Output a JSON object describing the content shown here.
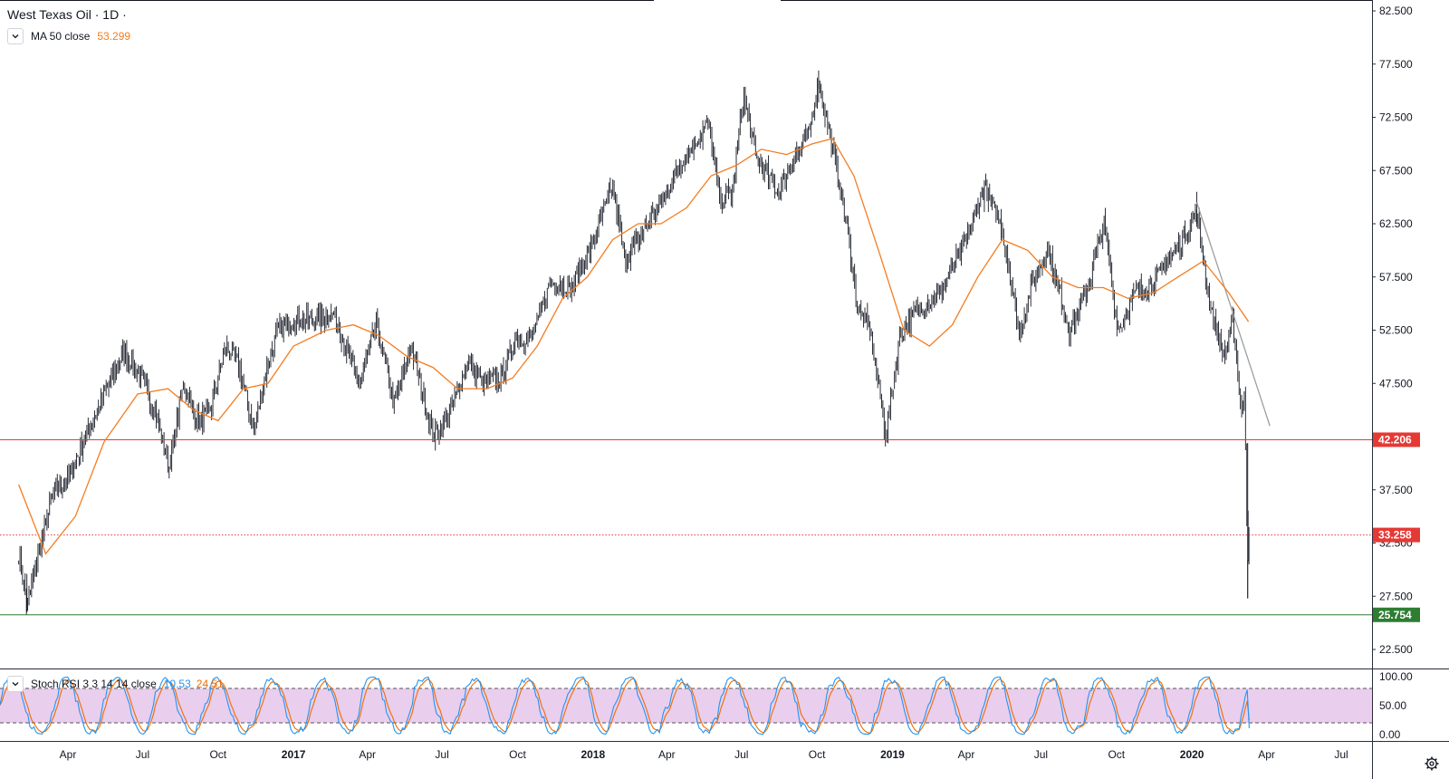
{
  "header": {
    "symbol_title": "West Texas Oil · 1D ·",
    "ma_label": "MA 50 close",
    "ma_value": "53.299",
    "stoch_label": "Stoch RSI 3 3 14 14 close",
    "stoch_k_value": "10.53",
    "stoch_d_value": "24.51"
  },
  "colors": {
    "candle": "#131722",
    "ma": "#f57c1f",
    "stoch_k": "#2196f3",
    "stoch_d": "#ef6c00",
    "stoch_band": "#e1bee7",
    "support_red": "#e53935",
    "support_green": "#2e7d32",
    "trendline": "#9e9e9e"
  },
  "icons": {
    "legend_toggle": "chevron-down-icon",
    "settings": "gear-icon"
  },
  "chart_data": [
    {
      "type": "candlestick",
      "title": "West Texas Oil · 1D ·",
      "ylim": [
        20.0,
        85.0
      ],
      "y_ticks": [
        "82.500",
        "77.500",
        "72.500",
        "67.500",
        "62.500",
        "57.500",
        "52.500",
        "47.500",
        "42.500",
        "37.500",
        "32.500",
        "27.500",
        "22.500"
      ],
      "x_ticks": [
        "Apr",
        "Jul",
        "Oct",
        "2017",
        "Apr",
        "Jul",
        "Oct",
        "2018",
        "Apr",
        "Jul",
        "Oct",
        "2019",
        "Apr",
        "Jul",
        "Oct",
        "2020",
        "Apr",
        "Jul"
      ],
      "x_range": [
        "2016-02",
        "2020-08"
      ],
      "series": [
        {
          "name": "West Texas Oil",
          "close_path": [
            [
              "2016-02-01",
              31.5
            ],
            [
              "2016-02-11",
              26.5
            ],
            [
              "2016-02-25",
              31.5
            ],
            [
              "2016-03-15",
              37.5
            ],
            [
              "2016-04-01",
              38.5
            ],
            [
              "2016-04-20",
              42.0
            ],
            [
              "2016-05-10",
              45.5
            ],
            [
              "2016-06-08",
              50.5
            ],
            [
              "2016-06-25",
              48.5
            ],
            [
              "2016-07-05",
              47.0
            ],
            [
              "2016-07-20",
              44.0
            ],
            [
              "2016-08-02",
              39.5
            ],
            [
              "2016-08-20",
              47.5
            ],
            [
              "2016-09-05",
              44.0
            ],
            [
              "2016-09-20",
              44.5
            ],
            [
              "2016-10-10",
              51.0
            ],
            [
              "2016-10-25",
              49.5
            ],
            [
              "2016-11-14",
              43.0
            ],
            [
              "2016-11-30",
              49.0
            ],
            [
              "2016-12-12",
              52.5
            ],
            [
              "2017-01-05",
              53.5
            ],
            [
              "2017-02-01",
              53.5
            ],
            [
              "2017-02-20",
              54.0
            ],
            [
              "2017-03-08",
              50.0
            ],
            [
              "2017-03-22",
              47.5
            ],
            [
              "2017-04-12",
              53.0
            ],
            [
              "2017-05-04",
              45.5
            ],
            [
              "2017-05-24",
              51.0
            ],
            [
              "2017-06-21",
              42.5
            ],
            [
              "2017-07-10",
              44.5
            ],
            [
              "2017-08-01",
              49.5
            ],
            [
              "2017-08-20",
              47.5
            ],
            [
              "2017-09-10",
              48.0
            ],
            [
              "2017-09-28",
              51.5
            ],
            [
              "2017-10-20",
              52.0
            ],
            [
              "2017-11-10",
              57.0
            ],
            [
              "2017-12-05",
              56.5
            ],
            [
              "2017-12-28",
              60.0
            ],
            [
              "2018-01-25",
              66.0
            ],
            [
              "2018-02-09",
              59.0
            ],
            [
              "2018-03-01",
              61.5
            ],
            [
              "2018-03-28",
              65.0
            ],
            [
              "2018-04-20",
              68.5
            ],
            [
              "2018-05-22",
              72.0
            ],
            [
              "2018-06-05",
              64.5
            ],
            [
              "2018-06-20",
              65.5
            ],
            [
              "2018-07-03",
              74.5
            ],
            [
              "2018-07-20",
              68.5
            ],
            [
              "2018-08-15",
              65.5
            ],
            [
              "2018-09-05",
              69.0
            ],
            [
              "2018-09-20",
              70.5
            ],
            [
              "2018-10-03",
              76.0
            ],
            [
              "2018-10-20",
              69.5
            ],
            [
              "2018-11-05",
              63.0
            ],
            [
              "2018-11-20",
              54.5
            ],
            [
              "2018-12-05",
              52.5
            ],
            [
              "2018-12-24",
              42.5
            ],
            [
              "2019-01-10",
              52.0
            ],
            [
              "2019-02-01",
              54.5
            ],
            [
              "2019-03-01",
              56.0
            ],
            [
              "2019-04-01",
              61.0
            ],
            [
              "2019-04-23",
              66.0
            ],
            [
              "2019-05-15",
              62.0
            ],
            [
              "2019-06-05",
              52.0
            ],
            [
              "2019-06-20",
              57.0
            ],
            [
              "2019-07-10",
              60.0
            ],
            [
              "2019-08-05",
              52.5
            ],
            [
              "2019-08-25",
              56.0
            ],
            [
              "2019-09-16",
              62.5
            ],
            [
              "2019-10-03",
              52.5
            ],
            [
              "2019-10-25",
              56.0
            ],
            [
              "2019-11-20",
              57.5
            ],
            [
              "2019-12-20",
              61.0
            ],
            [
              "2020-01-07",
              63.5
            ],
            [
              "2020-01-25",
              54.0
            ],
            [
              "2020-02-10",
              50.0
            ],
            [
              "2020-02-20",
              53.5
            ],
            [
              "2020-03-01",
              45.0
            ],
            [
              "2020-03-05",
              46.5
            ],
            [
              "2020-03-09",
              31.0
            ],
            [
              "2020-03-10",
              33.3
            ]
          ],
          "notable_lows": [
            [
              "2016-02-11",
              26.0
            ],
            [
              "2020-03-09",
              27.3
            ]
          ],
          "notable_highs": [
            [
              "2018-10-03",
              76.9
            ],
            [
              "2019-04-23",
              66.6
            ],
            [
              "2020-01-07",
              65.5
            ]
          ]
        },
        {
          "name": "MA 50 close",
          "last_value": 53.299,
          "points": [
            [
              "2016-02-01",
              38.0
            ],
            [
              "2016-03-05",
              31.5
            ],
            [
              "2016-04-10",
              35.0
            ],
            [
              "2016-05-15",
              42.0
            ],
            [
              "2016-06-25",
              46.5
            ],
            [
              "2016-08-01",
              47.0
            ],
            [
              "2016-09-01",
              45.0
            ],
            [
              "2016-10-01",
              44.0
            ],
            [
              "2016-11-01",
              47.0
            ],
            [
              "2016-12-01",
              47.5
            ],
            [
              "2017-01-01",
              51.0
            ],
            [
              "2017-02-10",
              52.5
            ],
            [
              "2017-03-15",
              53.0
            ],
            [
              "2017-04-15",
              52.0
            ],
            [
              "2017-05-20",
              50.0
            ],
            [
              "2017-06-20",
              49.0
            ],
            [
              "2017-07-20",
              47.0
            ],
            [
              "2017-08-25",
              47.0
            ],
            [
              "2017-09-25",
              48.0
            ],
            [
              "2017-10-25",
              51.0
            ],
            [
              "2017-11-25",
              55.5
            ],
            [
              "2017-12-25",
              57.5
            ],
            [
              "2018-01-25",
              61.0
            ],
            [
              "2018-02-25",
              62.5
            ],
            [
              "2018-03-25",
              62.5
            ],
            [
              "2018-04-25",
              64.0
            ],
            [
              "2018-05-25",
              67.0
            ],
            [
              "2018-06-25",
              68.0
            ],
            [
              "2018-07-25",
              69.5
            ],
            [
              "2018-08-25",
              69.0
            ],
            [
              "2018-09-25",
              70.0
            ],
            [
              "2018-10-20",
              70.5
            ],
            [
              "2018-11-15",
              67.0
            ],
            [
              "2018-12-15",
              60.0
            ],
            [
              "2019-01-15",
              52.5
            ],
            [
              "2019-02-15",
              51.0
            ],
            [
              "2019-03-15",
              53.0
            ],
            [
              "2019-04-15",
              57.5
            ],
            [
              "2019-05-15",
              61.0
            ],
            [
              "2019-06-15",
              60.0
            ],
            [
              "2019-07-15",
              57.5
            ],
            [
              "2019-08-15",
              56.5
            ],
            [
              "2019-09-15",
              56.5
            ],
            [
              "2019-10-15",
              55.5
            ],
            [
              "2019-11-15",
              56.0
            ],
            [
              "2019-12-15",
              57.5
            ],
            [
              "2020-01-15",
              59.0
            ],
            [
              "2020-02-15",
              56.0
            ],
            [
              "2020-03-10",
              53.3
            ]
          ]
        }
      ],
      "horizontal_lines": [
        {
          "value": 42.206,
          "label": "42.206",
          "style": "solid",
          "color": "#e53935"
        },
        {
          "value": 33.258,
          "label": "33.258",
          "style": "dotted",
          "color": "#e53935"
        },
        {
          "value": 25.754,
          "label": "25.754",
          "style": "solid",
          "color": "#2e7d32"
        }
      ],
      "trendline": {
        "from": [
          "2020-01-07",
          64.5
        ],
        "to": [
          "2020-04-05",
          43.5
        ]
      }
    },
    {
      "type": "line",
      "title": "Stoch RSI 3 3 14 14 close",
      "ylim": [
        0,
        100
      ],
      "y_ticks": [
        "100.00",
        "50.00",
        "0.00"
      ],
      "bands": {
        "upper": 80,
        "lower": 20
      },
      "series": [
        {
          "name": "K",
          "last_value": 10.53
        },
        {
          "name": "D",
          "last_value": 24.51
        }
      ]
    }
  ]
}
